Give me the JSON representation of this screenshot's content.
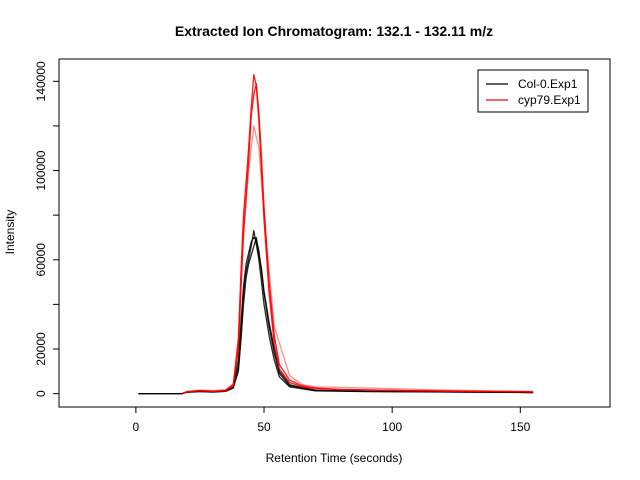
{
  "chart_data": {
    "type": "line",
    "title": "Extracted Ion Chromatogram: 132.1 - 132.11 m/z",
    "xlabel": "Retention Time (seconds)",
    "ylabel": "Intensity",
    "xlim": [
      -30,
      185
    ],
    "ylim": [
      -6000,
      150000
    ],
    "x_ticks": [
      0,
      50,
      100,
      150
    ],
    "y_ticks": [
      0,
      20000,
      40000,
      60000,
      80000,
      100000,
      120000,
      140000
    ],
    "y_tick_labels": [
      "0",
      "20000",
      "",
      "60000",
      "",
      "100000",
      "",
      "140000"
    ],
    "legend_position": "top-right",
    "legend": [
      {
        "label": "Col-0.Exp1",
        "color": "#000000"
      },
      {
        "label": "cyp79.Exp1",
        "color": "#ff0000"
      }
    ],
    "series": [
      {
        "name": "Col-0.Exp1",
        "color": "#000000",
        "opacity": 0.85,
        "x": [
          1,
          18,
          20,
          25,
          30,
          35,
          38,
          40,
          41,
          42,
          43,
          44,
          45,
          46,
          47,
          48,
          49,
          50,
          52,
          54,
          56,
          60,
          70,
          90,
          110,
          130,
          150,
          155
        ],
        "y": [
          0,
          0,
          800,
          1200,
          900,
          1200,
          3000,
          15000,
          32000,
          48000,
          58000,
          63000,
          68000,
          70000,
          69000,
          64000,
          55000,
          45000,
          30000,
          18000,
          9000,
          3500,
          1500,
          1000,
          900,
          700,
          600,
          500
        ]
      },
      {
        "name": "Col-0.Exp1",
        "color": "#000000",
        "opacity": 0.85,
        "x": [
          1,
          18,
          20,
          25,
          30,
          35,
          38,
          40,
          41,
          42,
          43,
          44,
          45,
          46,
          47,
          48,
          49,
          50,
          52,
          54,
          56,
          60,
          70,
          90,
          110,
          130,
          150,
          155
        ],
        "y": [
          0,
          0,
          600,
          900,
          700,
          1000,
          2500,
          12000,
          28000,
          45000,
          55000,
          60000,
          66000,
          73000,
          67000,
          60000,
          50000,
          40000,
          26000,
          15000,
          7500,
          3000,
          1200,
          900,
          800,
          700,
          500,
          400
        ]
      },
      {
        "name": "Col-0.Exp1",
        "color": "#000000",
        "opacity": 0.85,
        "x": [
          1,
          18,
          20,
          25,
          30,
          35,
          38,
          40,
          41,
          42,
          43,
          44,
          45,
          46,
          47,
          48,
          49,
          50,
          52,
          54,
          56,
          60,
          70,
          90,
          110,
          130,
          150,
          155
        ],
        "y": [
          0,
          0,
          700,
          1000,
          800,
          1100,
          2800,
          10000,
          24000,
          40000,
          52000,
          58000,
          62000,
          66000,
          70000,
          62000,
          56000,
          46000,
          32000,
          20000,
          10000,
          4000,
          1400,
          1000,
          900,
          800,
          600,
          500
        ]
      },
      {
        "name": "cyp79.Exp1",
        "color": "#ff0000",
        "opacity": 0.9,
        "x": [
          18,
          20,
          25,
          30,
          35,
          38,
          40,
          41,
          42,
          43,
          44,
          45,
          46,
          47,
          48,
          49,
          50,
          52,
          54,
          56,
          60,
          65,
          70,
          80,
          100,
          120,
          140,
          150,
          155
        ],
        "y": [
          0,
          900,
          1400,
          1100,
          1500,
          4000,
          25000,
          55000,
          80000,
          95000,
          110000,
          128000,
          143000,
          138000,
          122000,
          100000,
          78000,
          45000,
          22000,
          11000,
          5000,
          3000,
          2200,
          1800,
          1400,
          1100,
          900,
          800,
          700
        ]
      },
      {
        "name": "cyp79.Exp1",
        "color": "#ff0000",
        "opacity": 0.9,
        "x": [
          18,
          20,
          25,
          30,
          35,
          38,
          40,
          41,
          42,
          43,
          44,
          45,
          46,
          47,
          48,
          49,
          50,
          52,
          54,
          56,
          60,
          65,
          70,
          80,
          100,
          120,
          140,
          150,
          155
        ],
        "y": [
          0,
          800,
          1200,
          1000,
          1300,
          3500,
          20000,
          48000,
          72000,
          88000,
          104000,
          124000,
          134000,
          139000,
          126000,
          106000,
          84000,
          50000,
          26000,
          13000,
          6000,
          3500,
          2500,
          1900,
          1500,
          1200,
          1000,
          900,
          800
        ]
      },
      {
        "name": "cyp79.Exp1",
        "color": "#ff0000",
        "opacity": 0.45,
        "x": [
          18,
          20,
          25,
          30,
          35,
          38,
          40,
          42,
          44,
          46,
          48,
          50,
          54,
          60,
          65,
          70,
          80,
          100,
          120,
          140,
          155
        ],
        "y": [
          0,
          1000,
          1600,
          1300,
          1700,
          4500,
          22000,
          70000,
          100000,
          120000,
          110000,
          80000,
          30000,
          8000,
          4000,
          3000,
          2800,
          2200,
          1600,
          1200,
          1000
        ]
      }
    ]
  }
}
